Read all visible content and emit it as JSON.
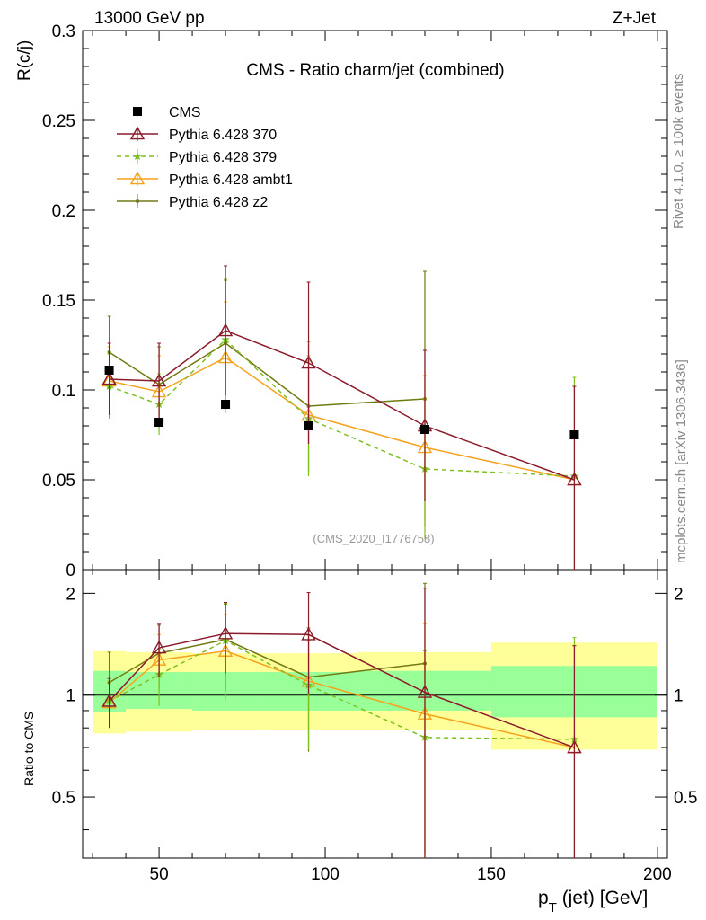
{
  "header": {
    "left": "13000 GeV pp",
    "right": "Z+Jet"
  },
  "side": {
    "rivet": "Rivet 4.1.0, ≥ 100k events",
    "mcplots": "mcplots.cern.ch [arXiv:1306.3436]"
  },
  "colors": {
    "cms": "#000000",
    "p370": "#8b1a2b",
    "p379": "#7fbf1f",
    "ambt1": "#f5a21d",
    "z2": "#707a10",
    "band_inner": "#99ff99",
    "band_outer": "#ffff99"
  },
  "chart_data": [
    {
      "type": "scatter",
      "title": "CMS - Ratio charm/jet (combined)",
      "watermark": "(CMS_2020_I1776758)",
      "xlabel_main": "p",
      "xlabel_sub": "T",
      "xlabel_rest": " (jet) [GeV]",
      "ylabel": "R(c/j)",
      "xlim": [
        27,
        203
      ],
      "ylim": [
        0,
        0.3
      ],
      "yticks": [
        0,
        0.05,
        0.1,
        0.15,
        0.2,
        0.25,
        0.3
      ],
      "ytick_labels": [
        "0",
        "0.05",
        "0.1",
        "0.15",
        "0.2",
        "0.25",
        "0.3"
      ],
      "xticks": [
        50,
        100,
        150,
        200
      ],
      "xtick_labels": [
        "50",
        "100",
        "150",
        "200"
      ],
      "legend_position": "top-left",
      "series": [
        {
          "key": "cms",
          "name": "CMS",
          "marker": "square",
          "x": [
            35,
            50,
            70,
            95,
            130,
            175
          ],
          "y": [
            0.111,
            0.082,
            0.092,
            0.08,
            0.078,
            0.075
          ],
          "err": [
            0,
            0,
            0,
            0,
            0,
            0
          ]
        },
        {
          "key": "p370",
          "name": "Pythia 6.428 370",
          "marker": "triangle-open",
          "x": [
            35,
            50,
            70,
            95,
            130,
            175
          ],
          "y": [
            0.106,
            0.105,
            0.133,
            0.115,
            0.08,
            0.05
          ],
          "err": [
            0.02,
            0.021,
            0.036,
            0.045,
            0.042,
            0.052
          ]
        },
        {
          "key": "p379",
          "name": "Pythia 6.428 379",
          "marker": "star",
          "dashed": true,
          "x": [
            35,
            50,
            70,
            95,
            130,
            175
          ],
          "y": [
            0.102,
            0.092,
            0.128,
            0.084,
            0.056,
            0.052
          ],
          "err": [
            0.018,
            0.017,
            0.034,
            0.032,
            0.039,
            0.055
          ]
        },
        {
          "key": "ambt1",
          "name": "Pythia 6.428 ambt1",
          "marker": "triangle-open",
          "x": [
            35,
            50,
            70,
            95,
            130,
            175
          ],
          "y": [
            0.105,
            0.099,
            0.118,
            0.086,
            0.068,
            0.05
          ],
          "err": [
            0.019,
            0.02,
            0.031,
            0.033,
            0.04,
            0.052
          ]
        },
        {
          "key": "z2",
          "name": "Pythia 6.428 z2",
          "marker": "dot",
          "x": [
            35,
            50,
            70,
            95,
            130
          ],
          "y": [
            0.121,
            0.103,
            0.126,
            0.091,
            0.095
          ],
          "err": [
            0.02,
            0.021,
            0.035,
            0.036,
            0.071
          ]
        }
      ]
    },
    {
      "type": "scatter",
      "ylabel": "Ratio to CMS",
      "xlim": [
        27,
        203
      ],
      "ylim": [
        0.33,
        2.35
      ],
      "yscale": "log",
      "yticks": [
        0.5,
        1,
        2
      ],
      "ytick_labels": [
        "0.5",
        "1",
        "2"
      ],
      "xticks": [
        50,
        100,
        150,
        200
      ],
      "reference_line": 1,
      "bands": [
        {
          "x0": 30,
          "x1": 40,
          "inner": [
            0.89,
            1.18
          ],
          "outer": [
            0.77,
            1.35
          ]
        },
        {
          "x0": 40,
          "x1": 60,
          "inner": [
            0.91,
            1.17
          ],
          "outer": [
            0.78,
            1.34
          ]
        },
        {
          "x0": 60,
          "x1": 80,
          "inner": [
            0.9,
            1.17
          ],
          "outer": [
            0.79,
            1.33
          ]
        },
        {
          "x0": 80,
          "x1": 110,
          "inner": [
            0.9,
            1.17
          ],
          "outer": [
            0.79,
            1.33
          ]
        },
        {
          "x0": 110,
          "x1": 150,
          "inner": [
            0.9,
            1.18
          ],
          "outer": [
            0.79,
            1.34
          ]
        },
        {
          "x0": 150,
          "x1": 200,
          "inner": [
            0.86,
            1.22
          ],
          "outer": [
            0.69,
            1.43
          ]
        }
      ],
      "series": [
        {
          "key": "p370",
          "x": [
            35,
            50,
            70,
            95,
            130,
            175
          ],
          "y": [
            0.96,
            1.38,
            1.52,
            1.51,
            1.02,
            0.7
          ],
          "err": [
            0.16,
            0.25,
            0.36,
            0.5,
            1.05,
            0.7
          ]
        },
        {
          "key": "p379",
          "x": [
            35,
            50,
            70,
            95,
            130,
            175
          ],
          "y": [
            0.96,
            1.15,
            1.45,
            1.07,
            0.75,
            0.74
          ],
          "err": [
            0.14,
            0.22,
            0.42,
            0.38,
            0.6,
            0.74
          ]
        },
        {
          "key": "ambt1",
          "x": [
            35,
            50,
            70,
            95,
            130,
            175
          ],
          "y": [
            0.95,
            1.27,
            1.35,
            1.1,
            0.88,
            0.7
          ],
          "err": [
            0.15,
            0.24,
            0.38,
            0.4,
            0.75,
            0.7
          ]
        },
        {
          "key": "z2",
          "x": [
            35,
            50,
            70,
            95,
            130
          ],
          "y": [
            1.09,
            1.33,
            1.46,
            1.13,
            1.24
          ],
          "err": [
            0.25,
            0.28,
            0.4,
            0.45,
            0.9
          ]
        }
      ]
    }
  ]
}
